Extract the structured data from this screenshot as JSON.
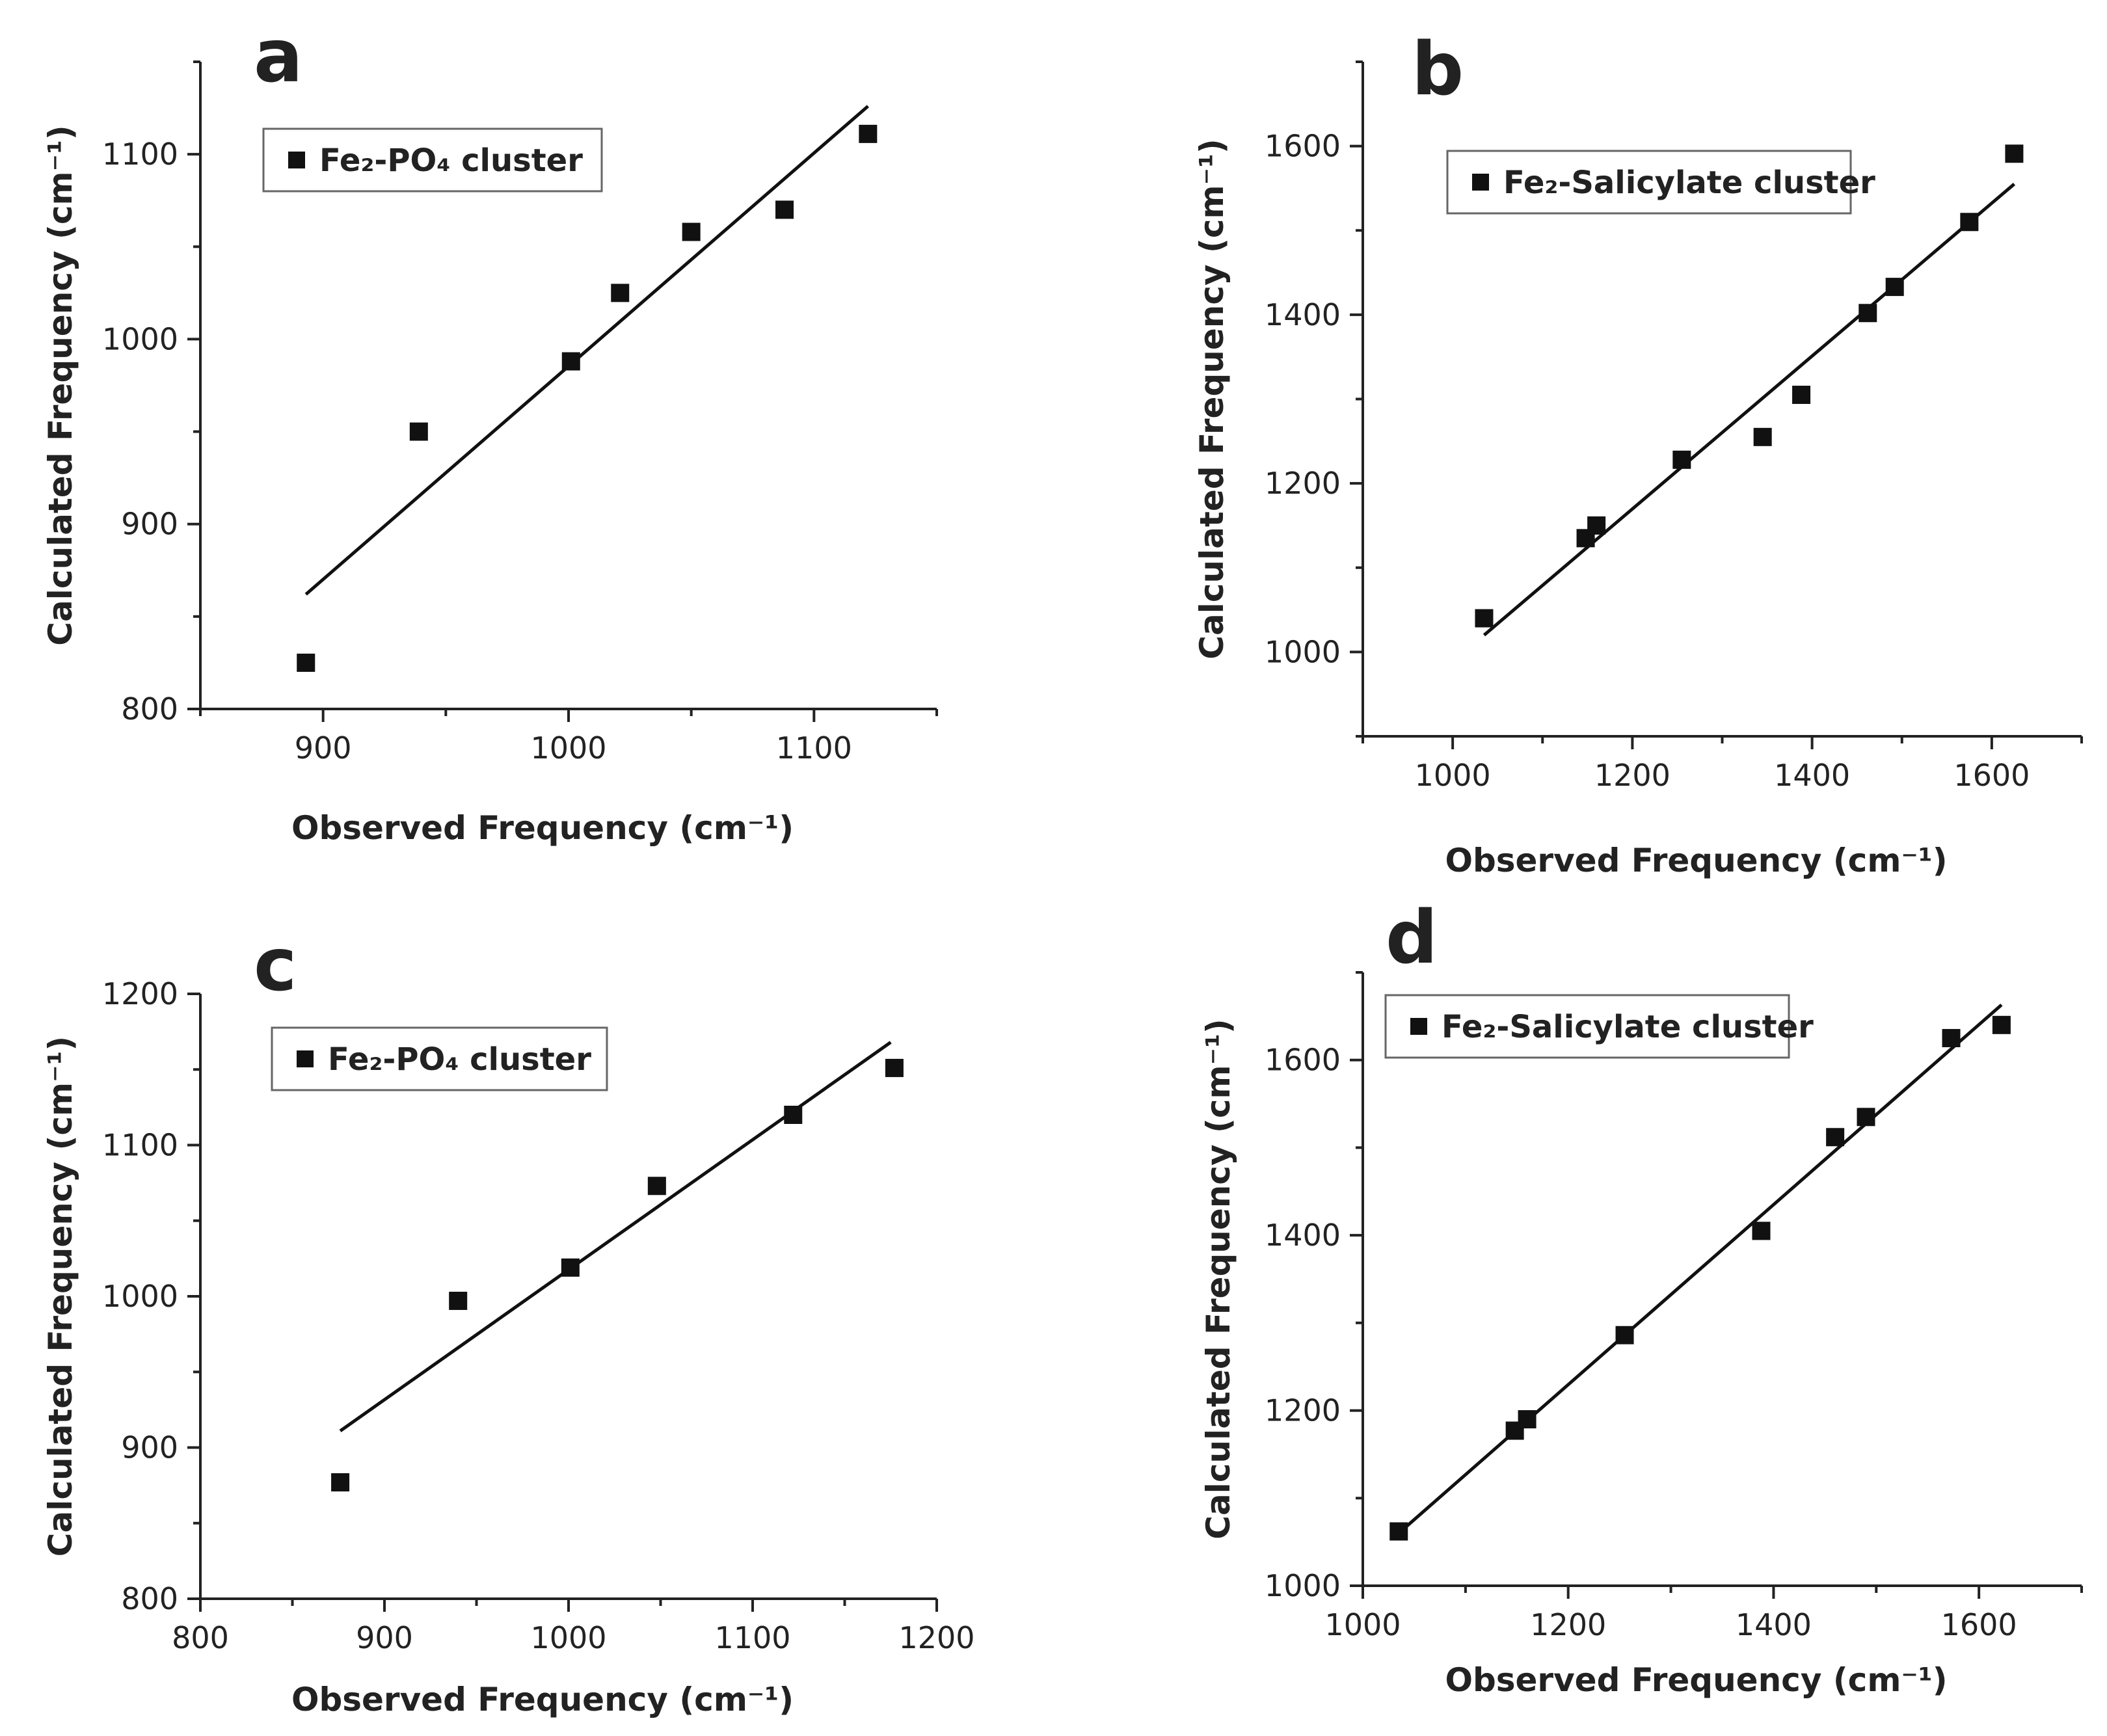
{
  "chart_data": [
    {
      "panel": "a",
      "type": "scatter",
      "xlabel": "Observed Frequency (cm⁻¹)",
      "ylabel": "Calculated Frequency (cm⁻¹)",
      "xlim": [
        850,
        1150
      ],
      "ylim": [
        800,
        1150
      ],
      "xticks": [
        900,
        1000,
        1100
      ],
      "yticks": [
        800,
        900,
        1000,
        1100
      ],
      "legend": "Fe₂-PO₄ cluster",
      "legend_position": "top-left",
      "series": [
        {
          "name": "Fe₂-PO₄ cluster",
          "x": [
            893,
            939,
            1001,
            1021,
            1050,
            1088,
            1122
          ],
          "y": [
            825,
            950,
            988,
            1025,
            1058,
            1070,
            1111
          ]
        }
      ],
      "fit_line": {
        "x": [
          893,
          1122
        ],
        "y": [
          862,
          1126
        ]
      }
    },
    {
      "panel": "b",
      "type": "scatter",
      "xlabel": "Observed Frequency (cm⁻¹)",
      "ylabel": "Calculated Frequency (cm⁻¹)",
      "xlim": [
        900,
        1700
      ],
      "ylim": [
        900,
        1700
      ],
      "xticks": [
        1000,
        1200,
        1400,
        1600
      ],
      "yticks": [
        1000,
        1200,
        1400,
        1600
      ],
      "legend": "Fe₂-Salicylate cluster",
      "legend_position": "top-left",
      "series": [
        {
          "name": "Fe₂-Salicylate cluster",
          "x": [
            1035,
            1148,
            1160,
            1255,
            1345,
            1388,
            1462,
            1492,
            1575,
            1625
          ],
          "y": [
            1040,
            1135,
            1150,
            1228,
            1255,
            1305,
            1402,
            1433,
            1510,
            1591
          ]
        }
      ],
      "fit_line": {
        "x": [
          1035,
          1625
        ],
        "y": [
          1020,
          1555
        ]
      }
    },
    {
      "panel": "c",
      "type": "scatter",
      "xlabel": "Observed Frequency (cm⁻¹)",
      "ylabel": "Calculated Frequency (cm⁻¹)",
      "xlim": [
        800,
        1200
      ],
      "ylim": [
        800,
        1200
      ],
      "xticks": [
        800,
        900,
        1000,
        1100,
        1200
      ],
      "yticks": [
        800,
        900,
        1000,
        1100,
        1200
      ],
      "legend": "Fe₂-PO₄ cluster",
      "legend_position": "top-left",
      "series": [
        {
          "name": "Fe₂-PO₄ cluster",
          "x": [
            876,
            940,
            1001,
            1048,
            1122,
            1177
          ],
          "y": [
            877,
            997,
            1019,
            1073,
            1120,
            1151
          ]
        }
      ],
      "fit_line": {
        "x": [
          876,
          1175
        ],
        "y": [
          911,
          1168
        ]
      }
    },
    {
      "panel": "d",
      "type": "scatter",
      "xlabel": "Observed Frequency (cm⁻¹)",
      "ylabel": "Calculated Frequency (cm⁻¹)",
      "xlim": [
        1000,
        1700
      ],
      "ylim": [
        1000,
        1700
      ],
      "xticks": [
        1000,
        1200,
        1400,
        1600
      ],
      "yticks": [
        1000,
        1200,
        1400,
        1600
      ],
      "legend": "Fe₂-Salicylate cluster",
      "legend_position": "top-left",
      "series": [
        {
          "name": "Fe₂-Salicylate cluster",
          "x": [
            1035,
            1148,
            1160,
            1255,
            1388,
            1460,
            1490,
            1573,
            1622
          ],
          "y": [
            1062,
            1177,
            1190,
            1286,
            1405,
            1512,
            1535,
            1625,
            1640
          ]
        }
      ],
      "fit_line": {
        "x": [
          1035,
          1622
        ],
        "y": [
          1060,
          1663
        ]
      }
    }
  ]
}
